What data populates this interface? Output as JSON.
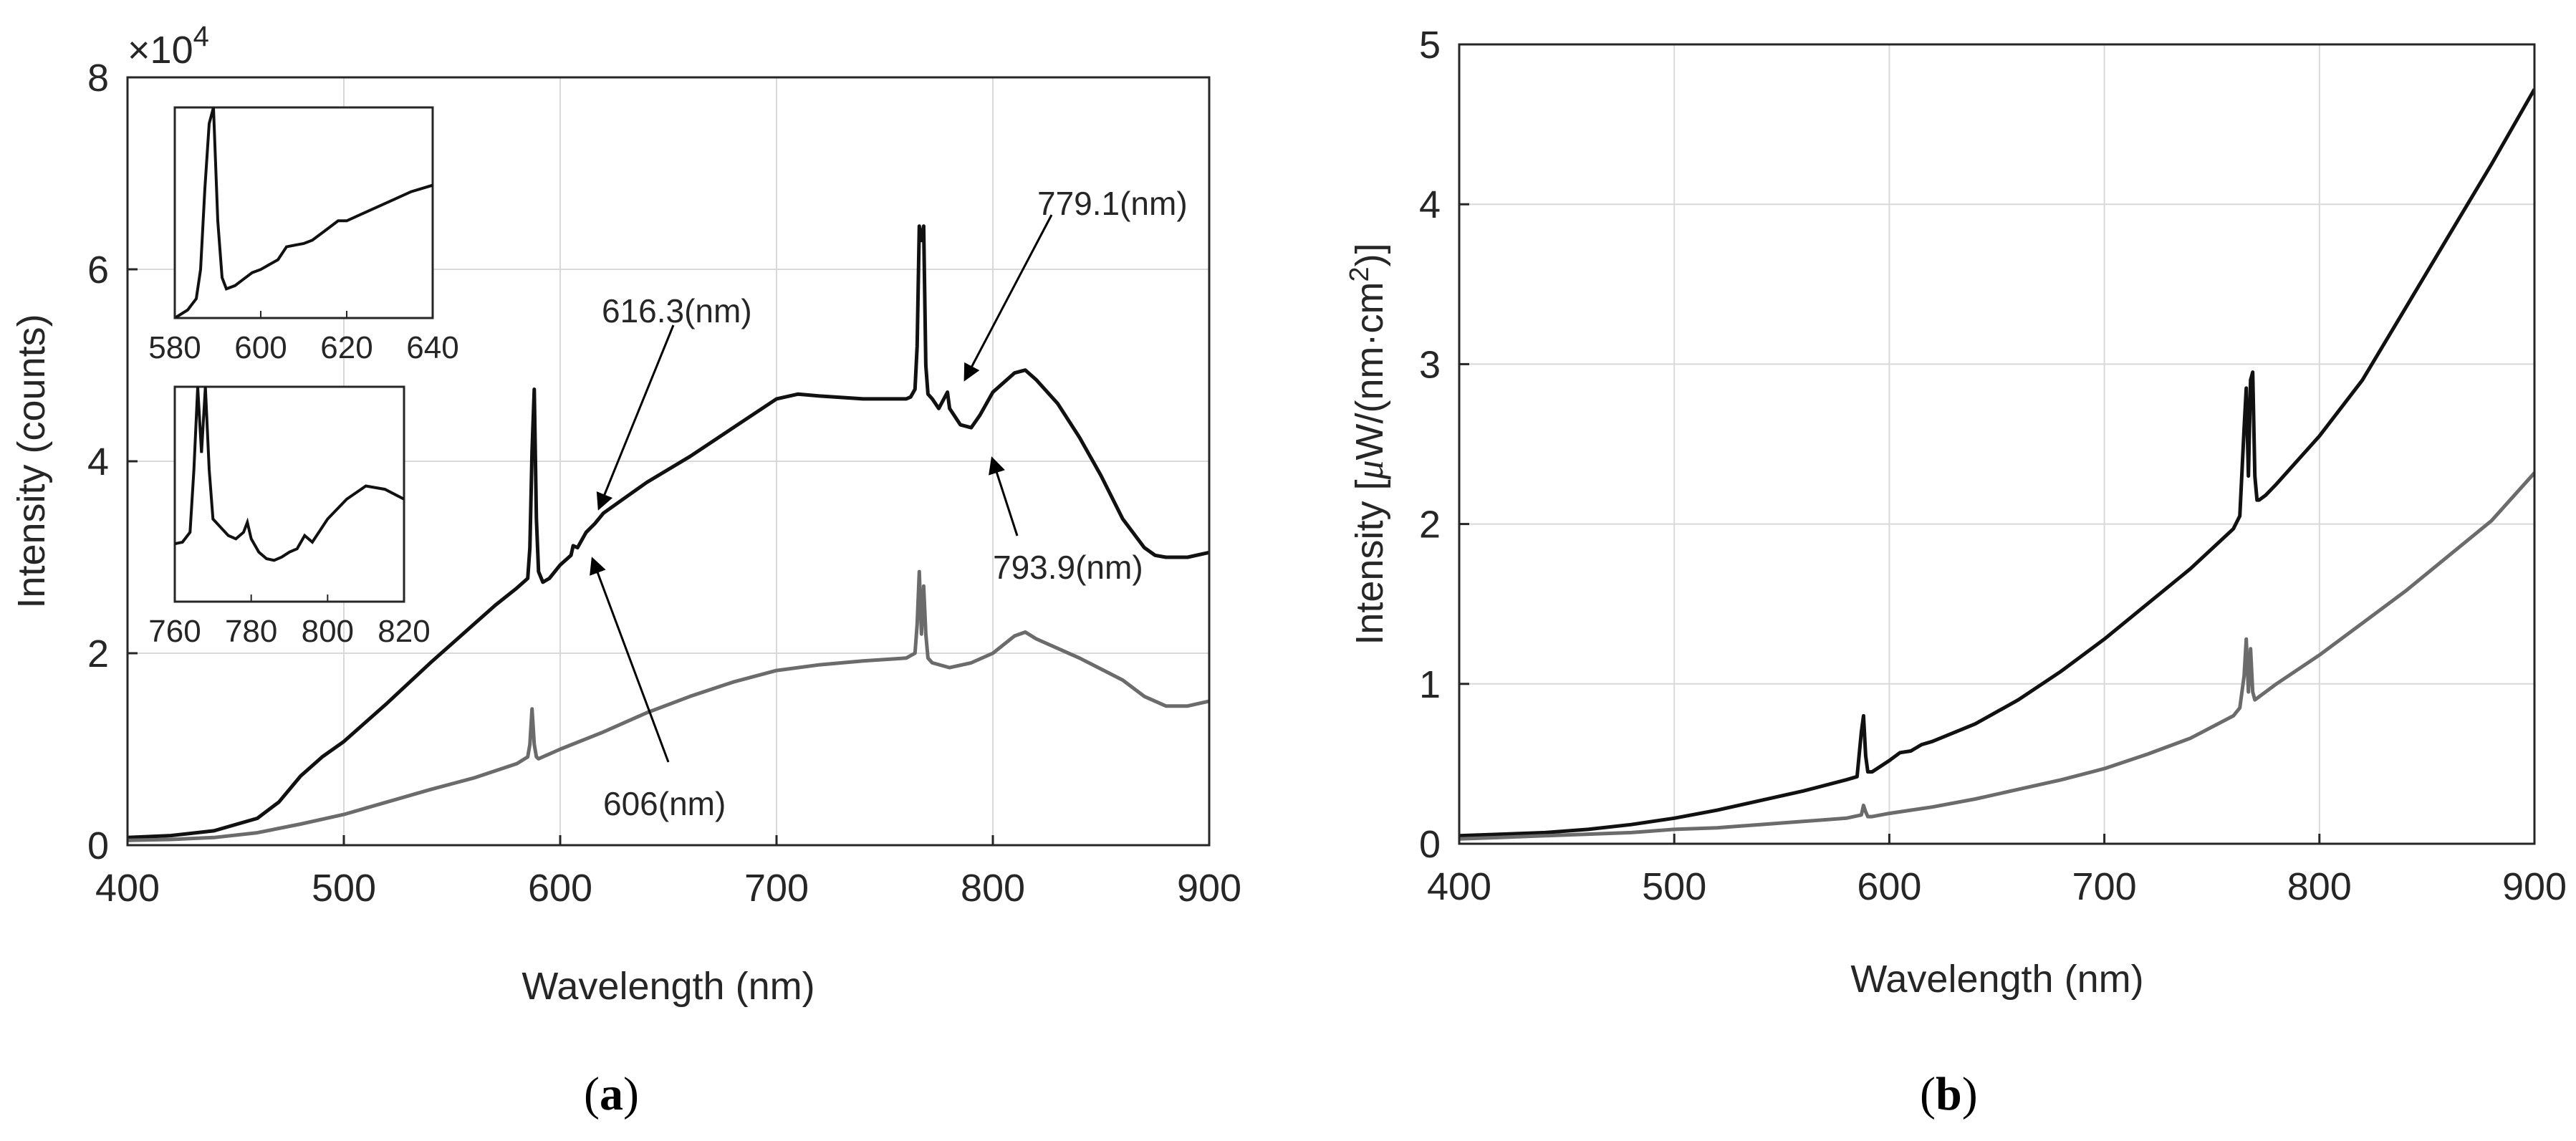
{
  "colors": {
    "dark_series": "#111111",
    "gray_series": "#6b6b6b",
    "grid": "#d9d9d9",
    "axis": "#262626"
  },
  "chart_data": [
    {
      "type": "line",
      "panel_label": "a",
      "xlabel": "Wavelength (nm)",
      "ylabel": "Intensity (counts)",
      "exponent_label": "×10",
      "exponent_power": "4",
      "xlim": [
        400,
        900
      ],
      "ylim": [
        0,
        8
      ],
      "xticks": [
        "400",
        "500",
        "600",
        "700",
        "800",
        "900"
      ],
      "yticks": [
        "0",
        "2",
        "4",
        "6",
        "8"
      ],
      "grid": true,
      "series": [
        {
          "name": "dark",
          "color": "#111111",
          "x": [
            400,
            420,
            440,
            460,
            470,
            480,
            490,
            500,
            520,
            540,
            560,
            570,
            580,
            585,
            586,
            587,
            588,
            589,
            590,
            592,
            595,
            600,
            605,
            606,
            608,
            612,
            616,
            620,
            630,
            640,
            660,
            680,
            700,
            710,
            720,
            740,
            760,
            762,
            764,
            765,
            766,
            767,
            768,
            769,
            770,
            772,
            775,
            779,
            780,
            785,
            790,
            794,
            800,
            810,
            815,
            820,
            830,
            840,
            850,
            860,
            870,
            875,
            880,
            890,
            900
          ],
          "y": [
            0.08,
            0.1,
            0.15,
            0.28,
            0.45,
            0.72,
            0.92,
            1.08,
            1.48,
            1.9,
            2.3,
            2.5,
            2.68,
            2.78,
            3.1,
            4.1,
            4.75,
            3.4,
            2.85,
            2.74,
            2.78,
            2.92,
            3.02,
            3.12,
            3.1,
            3.26,
            3.35,
            3.46,
            3.62,
            3.78,
            4.05,
            4.35,
            4.65,
            4.7,
            4.68,
            4.65,
            4.65,
            4.67,
            4.75,
            5.2,
            6.45,
            6.3,
            6.45,
            5.0,
            4.7,
            4.65,
            4.55,
            4.72,
            4.55,
            4.38,
            4.35,
            4.48,
            4.72,
            4.92,
            4.95,
            4.85,
            4.6,
            4.25,
            3.85,
            3.4,
            3.1,
            3.02,
            3.0,
            3.0,
            3.05
          ]
        },
        {
          "name": "gray",
          "color": "#6b6b6b",
          "x": [
            400,
            420,
            440,
            460,
            480,
            500,
            520,
            540,
            560,
            580,
            585,
            586,
            587,
            588,
            589,
            590,
            592,
            600,
            620,
            640,
            660,
            680,
            700,
            720,
            740,
            760,
            764,
            765,
            766,
            767,
            768,
            769,
            770,
            772,
            780,
            790,
            800,
            810,
            815,
            820,
            840,
            860,
            870,
            880,
            890,
            900
          ],
          "y": [
            0.05,
            0.06,
            0.08,
            0.13,
            0.22,
            0.32,
            0.45,
            0.58,
            0.7,
            0.85,
            0.92,
            1.05,
            1.42,
            1.05,
            0.92,
            0.9,
            0.92,
            1.0,
            1.18,
            1.38,
            1.55,
            1.7,
            1.82,
            1.88,
            1.92,
            1.95,
            2.0,
            2.3,
            2.85,
            2.2,
            2.7,
            2.2,
            1.95,
            1.9,
            1.85,
            1.9,
            2.0,
            2.18,
            2.22,
            2.15,
            1.95,
            1.72,
            1.55,
            1.45,
            1.45,
            1.5
          ]
        }
      ],
      "annotations": [
        {
          "text": "616.3(nm)",
          "x": 616.3
        },
        {
          "text": "779.1(nm)",
          "x": 779.1
        },
        {
          "text": "793.9(nm)",
          "x": 793.9
        },
        {
          "text": "606(nm)",
          "x": 606
        }
      ],
      "insets": [
        {
          "xlim": [
            580,
            640
          ],
          "xticks": [
            "580",
            "600",
            "620",
            "640"
          ],
          "x": [
            580,
            583,
            585,
            586,
            587,
            588,
            589,
            590,
            591,
            592,
            594,
            596,
            598,
            600,
            602,
            604,
            606,
            608,
            610,
            612,
            614,
            616,
            618,
            620,
            625,
            630,
            635,
            640
          ],
          "y": [
            0.0,
            0.05,
            0.12,
            0.3,
            0.8,
            1.2,
            1.3,
            0.6,
            0.25,
            0.18,
            0.2,
            0.24,
            0.28,
            0.3,
            0.33,
            0.36,
            0.44,
            0.45,
            0.46,
            0.48,
            0.52,
            0.56,
            0.6,
            0.6,
            0.66,
            0.72,
            0.78,
            0.82
          ]
        },
        {
          "xlim": [
            760,
            820
          ],
          "xticks": [
            "760",
            "780",
            "800",
            "820"
          ],
          "x": [
            760,
            762,
            764,
            765,
            766,
            767,
            768,
            769,
            770,
            772,
            774,
            776,
            778,
            779,
            780,
            782,
            784,
            786,
            788,
            790,
            792,
            794,
            796,
            800,
            805,
            810,
            815,
            820
          ],
          "y": [
            0.35,
            0.36,
            0.42,
            0.8,
            1.3,
            0.9,
            1.3,
            0.8,
            0.5,
            0.45,
            0.4,
            0.38,
            0.42,
            0.48,
            0.38,
            0.3,
            0.26,
            0.25,
            0.27,
            0.3,
            0.32,
            0.4,
            0.36,
            0.5,
            0.62,
            0.7,
            0.68,
            0.62
          ]
        }
      ]
    },
    {
      "type": "line",
      "panel_label": "b",
      "xlabel": "Wavelength (nm)",
      "ylabel_main": "Intensity [",
      "ylabel_mu": "μ",
      "ylabel_rest": "W/(nm·cm",
      "ylabel_sup": "2",
      "ylabel_end": ")]",
      "xlim": [
        400,
        900
      ],
      "ylim": [
        0,
        5
      ],
      "xticks": [
        "400",
        "500",
        "600",
        "700",
        "800",
        "900"
      ],
      "yticks": [
        "0",
        "1",
        "2",
        "3",
        "4",
        "5"
      ],
      "grid": true,
      "series": [
        {
          "name": "dark",
          "color": "#111111",
          "x": [
            400,
            420,
            440,
            460,
            480,
            500,
            520,
            540,
            560,
            580,
            585,
            587,
            588,
            589,
            590,
            592,
            600,
            605,
            610,
            615,
            620,
            640,
            660,
            680,
            700,
            720,
            740,
            760,
            763,
            765,
            766,
            767,
            768,
            769,
            770,
            771,
            772,
            775,
            780,
            800,
            820,
            840,
            860,
            880,
            900
          ],
          "y": [
            0.05,
            0.06,
            0.07,
            0.09,
            0.12,
            0.16,
            0.21,
            0.27,
            0.33,
            0.4,
            0.42,
            0.7,
            0.8,
            0.55,
            0.45,
            0.45,
            0.52,
            0.57,
            0.58,
            0.62,
            0.64,
            0.75,
            0.9,
            1.08,
            1.28,
            1.5,
            1.72,
            1.97,
            2.05,
            2.6,
            2.85,
            2.3,
            2.9,
            2.95,
            2.3,
            2.15,
            2.15,
            2.18,
            2.25,
            2.55,
            2.9,
            3.35,
            3.8,
            4.25,
            4.72
          ]
        },
        {
          "name": "gray",
          "color": "#6b6b6b",
          "x": [
            400,
            420,
            440,
            460,
            480,
            500,
            520,
            540,
            560,
            580,
            587,
            588,
            589,
            590,
            592,
            600,
            620,
            640,
            660,
            680,
            700,
            720,
            740,
            760,
            763,
            765,
            766,
            767,
            768,
            769,
            770,
            772,
            780,
            800,
            820,
            840,
            860,
            880,
            900
          ],
          "y": [
            0.03,
            0.04,
            0.05,
            0.06,
            0.07,
            0.09,
            0.1,
            0.12,
            0.14,
            0.16,
            0.18,
            0.24,
            0.2,
            0.17,
            0.17,
            0.19,
            0.23,
            0.28,
            0.34,
            0.4,
            0.47,
            0.56,
            0.66,
            0.8,
            0.85,
            1.05,
            1.28,
            0.95,
            1.22,
            0.95,
            0.9,
            0.92,
            1.0,
            1.18,
            1.38,
            1.58,
            1.8,
            2.02,
            2.32
          ]
        }
      ]
    }
  ]
}
